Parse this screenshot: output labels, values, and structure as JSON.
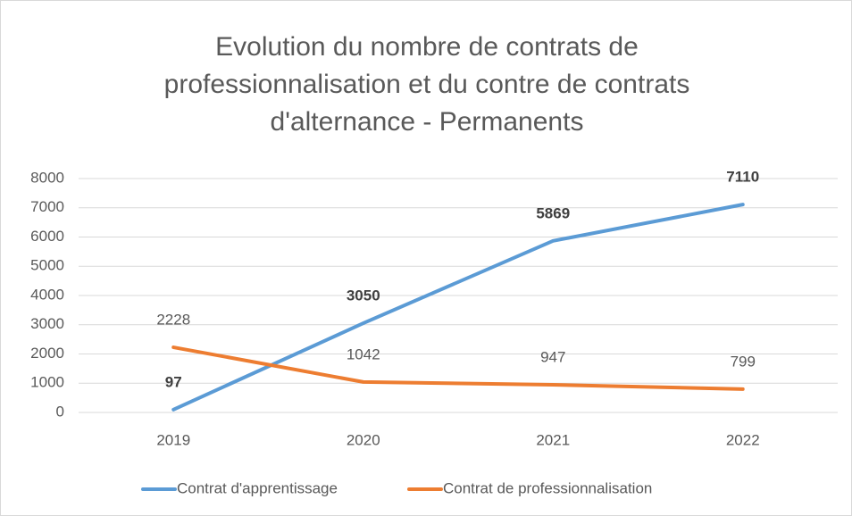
{
  "chart_data": {
    "type": "line",
    "title": "Evolution du nombre de contrats de professionnalisation et du contre de contrats d'alternance - Permanents",
    "categories": [
      "2019",
      "2020",
      "2021",
      "2022"
    ],
    "series": [
      {
        "name": "Contrat d'apprentissage",
        "color": "#5b9bd5",
        "values": [
          97,
          3050,
          5869,
          7110
        ]
      },
      {
        "name": "Contrat de professionnalisation",
        "color": "#ed7d31",
        "values": [
          2228,
          1042,
          947,
          799
        ]
      }
    ],
    "ylim": [
      0,
      8000
    ],
    "yticks": [
      0,
      1000,
      2000,
      3000,
      4000,
      5000,
      6000,
      7000,
      8000
    ],
    "grid": true,
    "legend": "bottom"
  }
}
